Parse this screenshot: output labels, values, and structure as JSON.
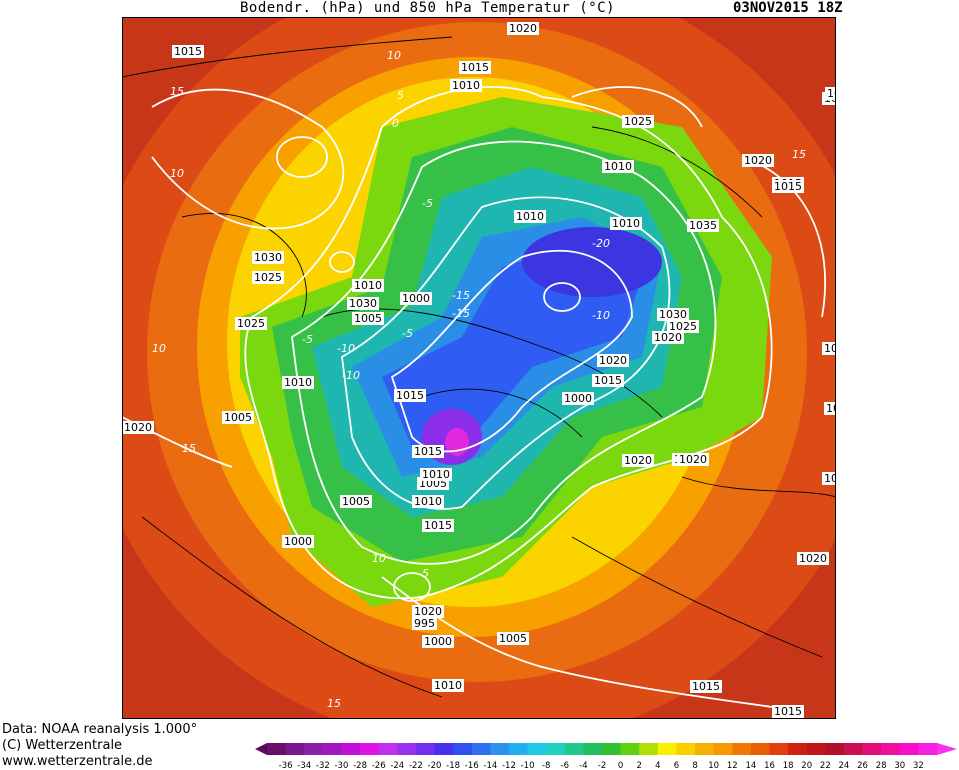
{
  "header": {
    "title": "Bodendr. (hPa) und 850 hPa Temperatur (°C)",
    "date": "03NOV2015 18Z"
  },
  "footer": {
    "line1": "Data: NOAA reanalysis 1.000°",
    "line2": "(C) Wetterzentrale",
    "line3": "www.wetterzentrale.de"
  },
  "legend": {
    "ticks": [
      "-36",
      "-34",
      "-32",
      "-30",
      "-28",
      "-26",
      "-24",
      "-22",
      "-20",
      "-18",
      "-16",
      "-14",
      "-12",
      "-10",
      "-8",
      "-6",
      "-4",
      "-2",
      "0",
      "2",
      "4",
      "6",
      "8",
      "10",
      "12",
      "14",
      "16",
      "18",
      "20",
      "22",
      "24",
      "26",
      "28",
      "30",
      "32"
    ]
  },
  "pressure_labels": [
    "1015",
    "1020",
    "1015",
    "1010",
    "1025",
    "1010",
    "1020",
    "1015",
    "1010",
    "1030",
    "1035",
    "1025",
    "1030",
    "1025",
    "1020",
    "1010",
    "1000",
    "1005",
    "1030",
    "1025",
    "1020",
    "1015",
    "1010",
    "1015",
    "1005",
    "1000",
    "1020",
    "1015",
    "1005",
    "1010",
    "1015",
    "1010",
    "1005",
    "1015",
    "1000",
    "1020",
    "995",
    "1000",
    "1005",
    "1010",
    "1015",
    "1020",
    "1010",
    "1015",
    "1020",
    "1025",
    "1010",
    "1020",
    "1020",
    "1010",
    "1015",
    "1010"
  ],
  "temp_labels": [
    "10",
    "15",
    "10",
    "5",
    "0",
    "-5",
    "-10",
    "-15",
    "-20",
    "15",
    "10",
    "-10",
    "-5",
    "15",
    "10",
    "5",
    "-5",
    "-10",
    "15",
    "-15"
  ],
  "colors": {
    "background": "#ffffff",
    "isobar": "#000000",
    "isotherm": "#ffffff",
    "label_box": "#ffffff"
  }
}
